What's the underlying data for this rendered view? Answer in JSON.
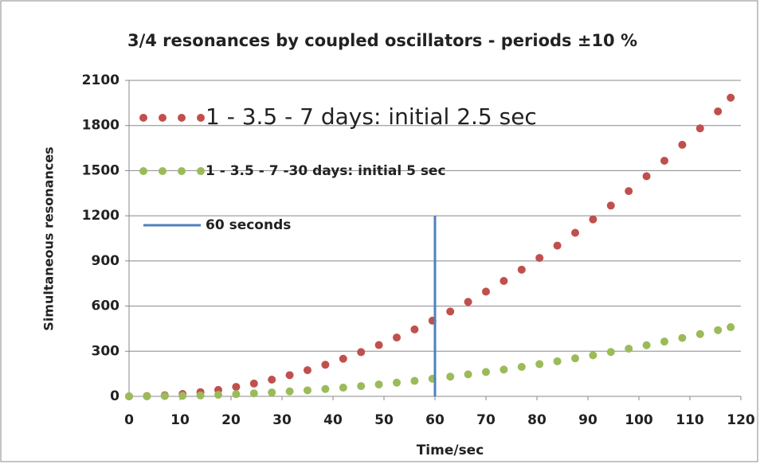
{
  "chart_data": {
    "type": "scatter",
    "title": "3/4 resonances by coupled oscillators - periods ±10 %",
    "x_label": "Time/sec",
    "y_label": "Simultaneous resonances",
    "xlim": [
      0,
      120
    ],
    "ylim": [
      0,
      2100
    ],
    "xticks": [
      0,
      10,
      20,
      30,
      40,
      50,
      60,
      70,
      80,
      90,
      100,
      110,
      120
    ],
    "yticks": [
      0,
      300,
      600,
      900,
      1200,
      1500,
      1800,
      2100
    ],
    "grid": true,
    "legend": "upper left",
    "series": [
      {
        "name": "1 - 3.5 - 7 days: initial 2.5 sec",
        "color": "#c0504d",
        "mode": "markers",
        "x": [
          0,
          3.5,
          7,
          10.5,
          14,
          17.5,
          21,
          24.5,
          28,
          31.5,
          35,
          38.5,
          42,
          45.5,
          49,
          52.5,
          56,
          59.5,
          63,
          66.5,
          70,
          73.5,
          77,
          80.5,
          84,
          87.5,
          91,
          94.5,
          98,
          101.5,
          105,
          108.5,
          112,
          115.5,
          118
        ],
        "values": [
          0,
          2,
          7,
          16,
          28,
          43,
          63,
          85,
          111,
          141,
          174,
          210,
          250,
          294,
          341,
          391,
          445,
          503,
          564,
          628,
          696,
          767,
          842,
          920,
          1002,
          1087,
          1176,
          1268,
          1364,
          1463,
          1566,
          1672,
          1781,
          1894,
          1985
        ]
      },
      {
        "name": "1 - 3.5 - 7 -30  days: initial 5 sec",
        "color": "#9bbb59",
        "mode": "markers",
        "x": [
          0,
          3.5,
          7,
          10.5,
          14,
          17.5,
          21,
          24.5,
          28,
          31.5,
          35,
          38.5,
          42,
          45.5,
          49,
          52.5,
          56,
          59.5,
          63,
          66.5,
          70,
          73.5,
          77,
          80.5,
          84,
          87.5,
          91,
          94.5,
          98,
          101.5,
          105,
          108.5,
          112,
          115.5,
          118
        ],
        "values": [
          0,
          0,
          2,
          4,
          6,
          10,
          15,
          20,
          26,
          33,
          40,
          49,
          58,
          68,
          79,
          91,
          103,
          117,
          131,
          146,
          162,
          178,
          196,
          214,
          233,
          253,
          273,
          295,
          317,
          340,
          364,
          388,
          414,
          440,
          460
        ]
      },
      {
        "name": "60 seconds",
        "color": "#4f81bd",
        "mode": "line",
        "x": [
          60,
          60
        ],
        "values": [
          0,
          1200
        ]
      }
    ]
  }
}
